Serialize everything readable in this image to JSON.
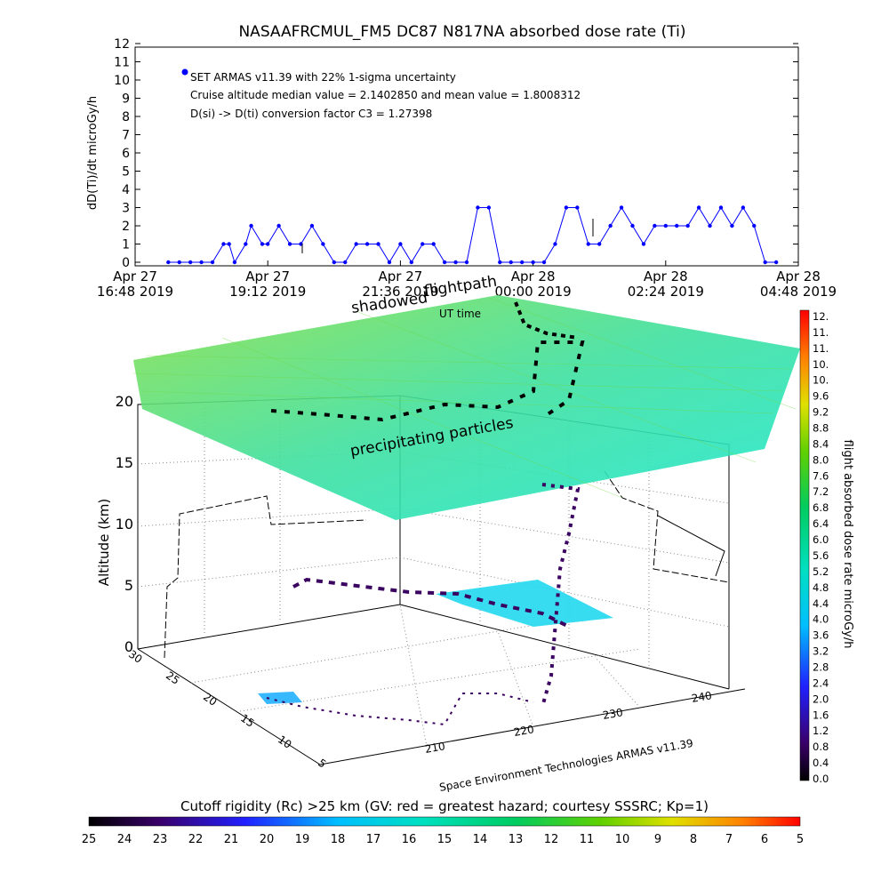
{
  "chart_data": [
    {
      "type": "scatter",
      "title": "NASAAFRCMUL_FM5 DC87 N817NA absorbed dose rate (Ti)",
      "ylabel": "dD(Ti)/dt microGy/h",
      "xlabel": "UT time",
      "ylim": [
        0,
        12
      ],
      "y_ticks": [
        "0",
        "1",
        "2",
        "3",
        "4",
        "5",
        "6",
        "7",
        "8",
        "9",
        "10",
        "11",
        "12"
      ],
      "x_ticks": [
        {
          "top": "Apr 27",
          "bottom": "16:48 2019"
        },
        {
          "top": "Apr 27",
          "bottom": "19:12 2019"
        },
        {
          "top": "Apr 27",
          "bottom": "21:36 2019"
        },
        {
          "top": "Apr 28",
          "bottom": "00:00 2019"
        },
        {
          "top": "Apr 28",
          "bottom": "02:24 2019"
        },
        {
          "top": "Apr 28",
          "bottom": "04:48 2019"
        }
      ],
      "legend": {
        "series": "SET ARMAS v11.39 with 22% 1-sigma uncertainty",
        "line2": "Cruise altitude median value = 2.1402850 and mean value = 1.8008312",
        "line3": "D(si) -> D(ti) conversion factor C3 = 1.27398",
        "color": "#0000ff"
      },
      "series": [
        {
          "x_hours": [
            0.6,
            0.8,
            1.0,
            1.2,
            1.4,
            1.6,
            1.7,
            1.8,
            2.0,
            2.1,
            2.3,
            2.4,
            2.6,
            2.8,
            3.0,
            3.2,
            3.4,
            3.6,
            3.8,
            4.0,
            4.2,
            4.4,
            4.6,
            4.8,
            5.0,
            5.2,
            5.4,
            5.6,
            5.8,
            6.0,
            6.2,
            6.4,
            6.6,
            6.8,
            7.0,
            7.2,
            7.4,
            7.6,
            7.8,
            8.0,
            8.2,
            8.4,
            8.6,
            8.8,
            9.0,
            9.2,
            9.4,
            9.6,
            9.8,
            10.0,
            10.2,
            10.4,
            10.6,
            10.8,
            11.0,
            11.2,
            11.4,
            11.6
          ],
          "values": [
            0,
            0,
            0,
            0,
            0,
            1,
            1,
            0,
            1,
            2,
            1,
            1,
            2,
            1,
            1,
            2,
            1,
            0,
            0,
            1,
            1,
            1,
            0,
            1,
            0,
            1,
            1,
            0,
            0,
            0,
            3,
            3,
            0,
            0,
            0,
            0,
            0,
            1,
            3,
            3,
            1,
            1,
            2,
            3,
            2,
            1,
            2,
            2,
            2,
            2,
            3,
            2,
            3,
            2,
            3,
            2,
            0,
            0
          ]
        }
      ]
    },
    {
      "type": "surface3d",
      "ylabel": "Altitude (km)",
      "z_ticks": [
        "0",
        "5",
        "10",
        "15",
        "20"
      ],
      "lat_ticks": [
        "30",
        "25",
        "20",
        "15",
        "10",
        "5"
      ],
      "lon_ticks": [
        "210",
        "220",
        "230",
        "240"
      ],
      "annotations": {
        "shadowed": "shadowed",
        "flightpath": "flightpath",
        "ut_time": "UT time",
        "precipitating": "precipitating particles",
        "credit": "Space Environment Technologies ARMAS v11.39"
      }
    },
    {
      "type": "colorbar",
      "orientation": "vertical",
      "label": "flight absorbed dose rate microGy/h",
      "ticks": [
        "12.",
        "11.",
        "11.",
        "10.",
        "10.",
        "9.6",
        "9.2",
        "8.8",
        "8.4",
        "8.0",
        "7.6",
        "7.2",
        "6.8",
        "6.4",
        "6.0",
        "5.6",
        "5.2",
        "4.8",
        "4.4",
        "4.0",
        "3.6",
        "3.2",
        "2.8",
        "2.4",
        "2.0",
        "1.6",
        "1.2",
        "0.8",
        "0.4",
        "0.0"
      ]
    },
    {
      "type": "colorbar",
      "orientation": "horizontal",
      "label": "Cutoff rigidity (Rc) >25 km (GV: red = greatest hazard; courtesy SSSRC; Kp=1)",
      "ticks": [
        "25",
        "24",
        "23",
        "22",
        "21",
        "20",
        "19",
        "18",
        "17",
        "16",
        "15",
        "14",
        "13",
        "12",
        "11",
        "10",
        "9",
        "8",
        "7",
        "6",
        "5"
      ]
    }
  ]
}
